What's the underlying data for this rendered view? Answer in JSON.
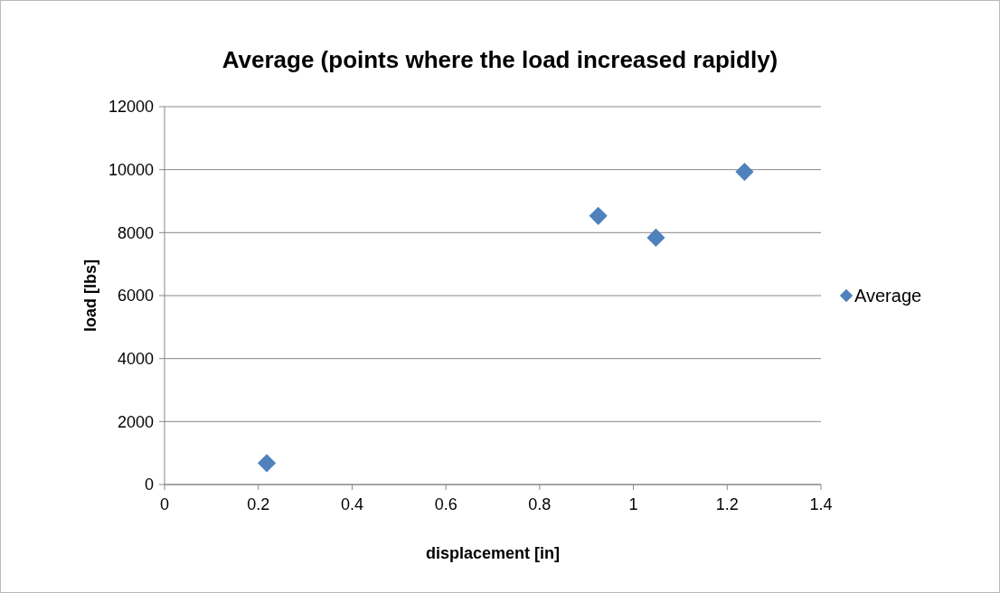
{
  "chart_data": {
    "type": "scatter",
    "title": "Average (points where the load increased rapidly)",
    "xlabel": "displacement [in]",
    "ylabel": "load [lbs]",
    "x": [
      0.218,
      0.925,
      1.048,
      1.237
    ],
    "series": [
      {
        "name": "Average",
        "color": "#4f81bd",
        "values": [
          680,
          8530,
          7840,
          9930
        ]
      }
    ],
    "xlim": [
      0,
      1.4
    ],
    "xticks": [
      0,
      0.2,
      0.4,
      0.6,
      0.8,
      1,
      1.2,
      1.4
    ],
    "ylim": [
      0,
      12000
    ],
    "yticks": [
      0,
      2000,
      4000,
      6000,
      8000,
      10000,
      12000
    ],
    "grid": "y",
    "legend": "right",
    "marker": "diamond"
  }
}
